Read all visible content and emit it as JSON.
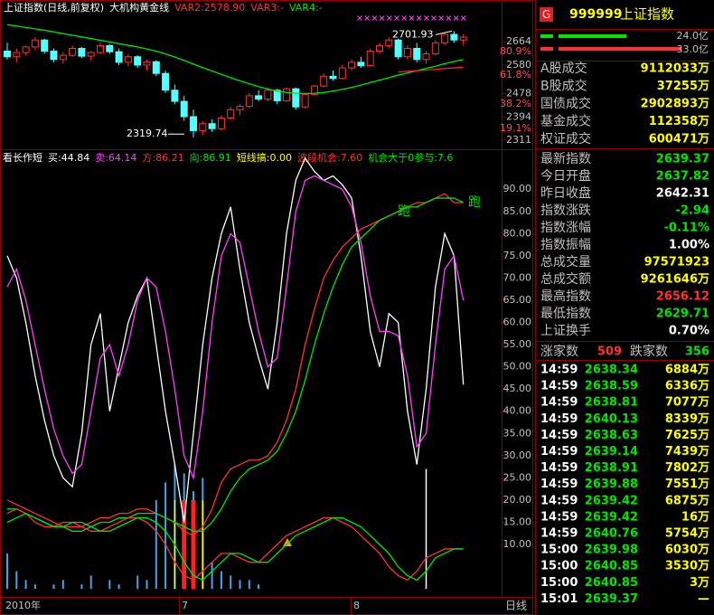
{
  "main_chart": {
    "title": "上证指数(日线,前复权)",
    "indicator": "大机构黄金线",
    "vars": [
      {
        "text": "VAR2:2578.90",
        "color": "#ff3232"
      },
      {
        "text": "VAR3:-",
        "color": "#ff3232"
      },
      {
        "text": "VAR4:-",
        "color": "#00e600"
      }
    ],
    "ylim": [
      2288,
      2768
    ],
    "yticks": [
      2664,
      {
        "value": 2628,
        "label": "80.9%"
      },
      2580,
      {
        "value": 2544,
        "label": "61.8%"
      },
      2478,
      {
        "value": 2440,
        "label": "38.2%"
      },
      2394,
      {
        "value": 2353,
        "label": "19.1%"
      },
      2311
    ],
    "open": [
      2630,
      2610,
      2625,
      2645,
      2670,
      2630,
      2600,
      2615,
      2640,
      2612,
      2625,
      2650,
      2628,
      2590,
      2610,
      2580,
      2592,
      2550,
      2490,
      2450,
      2395,
      2345,
      2370,
      2352,
      2390,
      2420,
      2432,
      2470,
      2458,
      2490,
      2452,
      2495,
      2430,
      2475,
      2505,
      2540,
      2532,
      2570,
      2590,
      2578,
      2630,
      2650,
      2670,
      2610,
      2640,
      2600,
      2620,
      2660,
      2690,
      2670
    ],
    "high": [
      2660,
      2640,
      2650,
      2680,
      2675,
      2640,
      2625,
      2650,
      2645,
      2630,
      2660,
      2655,
      2640,
      2620,
      2615,
      2600,
      2598,
      2560,
      2510,
      2470,
      2420,
      2380,
      2385,
      2400,
      2430,
      2440,
      2480,
      2490,
      2500,
      2495,
      2500,
      2500,
      2480,
      2510,
      2550,
      2560,
      2580,
      2600,
      2610,
      2640,
      2660,
      2680,
      2675,
      2650,
      2660,
      2630,
      2670,
      2695,
      2701.93,
      2690
    ],
    "low": [
      2600,
      2590,
      2615,
      2635,
      2620,
      2590,
      2585,
      2610,
      2605,
      2595,
      2620,
      2620,
      2580,
      2575,
      2570,
      2560,
      2540,
      2480,
      2440,
      2380,
      2319.74,
      2330,
      2340,
      2345,
      2385,
      2400,
      2425,
      2450,
      2450,
      2440,
      2448,
      2420,
      2425,
      2470,
      2500,
      2525,
      2528,
      2560,
      2570,
      2575,
      2620,
      2640,
      2600,
      2600,
      2590,
      2585,
      2615,
      2650,
      2660,
      2650
    ],
    "close": [
      2610,
      2625,
      2645,
      2670,
      2630,
      2600,
      2615,
      2640,
      2612,
      2625,
      2650,
      2628,
      2590,
      2610,
      2580,
      2592,
      2550,
      2490,
      2450,
      2395,
      2345,
      2370,
      2352,
      2390,
      2420,
      2432,
      2470,
      2458,
      2490,
      2452,
      2495,
      2430,
      2475,
      2505,
      2540,
      2532,
      2570,
      2590,
      2578,
      2630,
      2650,
      2670,
      2610,
      2640,
      2600,
      2620,
      2660,
      2690,
      2670,
      2680
    ],
    "ma_green": [
      2725,
      2720,
      2715,
      2710,
      2705,
      2699,
      2693,
      2687,
      2681,
      2675,
      2669,
      2663,
      2657,
      2651,
      2645,
      2638,
      2630,
      2620,
      2609,
      2597,
      2584,
      2571,
      2559,
      2547,
      2535,
      2524,
      2513,
      2503,
      2494,
      2487,
      2482,
      2479,
      2478,
      2479,
      2482,
      2487,
      2493,
      2500,
      2508,
      2517,
      2526,
      2535,
      2544,
      2552,
      2560,
      2568,
      2576,
      2585,
      2593,
      2600
    ],
    "ma_red": [
      null,
      null,
      null,
      null,
      null,
      null,
      null,
      null,
      null,
      null,
      null,
      null,
      null,
      null,
      null,
      null,
      null,
      null,
      null,
      null,
      null,
      null,
      null,
      null,
      null,
      null,
      null,
      null,
      null,
      null,
      null,
      null,
      null,
      null,
      null,
      null,
      null,
      null,
      null,
      null,
      null,
      null,
      2555,
      2558,
      2560,
      2562,
      2565,
      2568,
      2570,
      2573
    ],
    "high_label": 2701.93,
    "low_label": 2319.74
  },
  "indicator_chart": {
    "header": [
      {
        "text": "看长作短",
        "color": "#ffffff"
      },
      {
        "text": "买:44.84",
        "color": "#ffffff"
      },
      {
        "text": "卖:64.14",
        "color": "#ff40ff"
      },
      {
        "text": "方:86.21",
        "color": "#ff3232"
      },
      {
        "text": "向:86.91",
        "color": "#00e600"
      },
      {
        "text": "短线搞:0.00",
        "color": "#ffff00"
      },
      {
        "text": "波段机会:7.60",
        "color": "#ff3232"
      },
      {
        "text": "机会大于0参与:7.6",
        "color": "#00e600"
      }
    ],
    "ylim": [
      -1.4,
      98.4
    ],
    "yticks": [
      {
        "value": 90,
        "label": "90.00"
      },
      {
        "value": 85,
        "label": "85.00"
      },
      {
        "value": 80,
        "label": "80.00"
      },
      {
        "value": 75,
        "label": "75.00"
      },
      {
        "value": 70,
        "label": "70.00"
      },
      {
        "value": 65,
        "label": "65.00"
      },
      {
        "value": 60,
        "label": "60.00"
      },
      {
        "value": 55,
        "label": "55.00"
      },
      {
        "value": 50,
        "label": "50.00"
      },
      {
        "value": 45,
        "label": "45.00"
      },
      {
        "value": 40,
        "label": "40.00"
      },
      {
        "value": 35,
        "label": "35.00"
      },
      {
        "value": 30,
        "label": "30.00"
      },
      {
        "value": 25,
        "label": "25.00"
      },
      {
        "value": 20,
        "label": "20.00"
      },
      {
        "value": 15,
        "label": "15.00"
      },
      {
        "value": 10,
        "label": "10.00"
      }
    ],
    "lines": [
      {
        "color": "#ffffff",
        "values": [
          75,
          70,
          60,
          48,
          38,
          30,
          25,
          23,
          35,
          55,
          62,
          40,
          50,
          60,
          66,
          70,
          55,
          40,
          28,
          15,
          35,
          55,
          70,
          80,
          86,
          72,
          60,
          52,
          45,
          60,
          80,
          92,
          97,
          94,
          92,
          93,
          91,
          88,
          75,
          58,
          50,
          62,
          60,
          40,
          28,
          45,
          68,
          80,
          75,
          46
        ]
      },
      {
        "color": "#ff40ff",
        "values": [
          68,
          72,
          65,
          55,
          45,
          36,
          30,
          26,
          28,
          40,
          52,
          55,
          48,
          55,
          65,
          70,
          68,
          58,
          45,
          30,
          25,
          40,
          60,
          75,
          80,
          78,
          68,
          58,
          50,
          52,
          68,
          85,
          92,
          93,
          92,
          91,
          90,
          86,
          78,
          66,
          58,
          58,
          57,
          48,
          32,
          35,
          55,
          72,
          75,
          65
        ]
      },
      {
        "color": "#ff3232",
        "values": [
          20,
          19,
          18,
          17,
          16,
          15,
          14,
          14,
          14,
          15,
          16,
          16,
          17,
          17,
          18,
          18,
          17,
          16,
          15,
          13,
          12,
          14,
          18,
          24,
          27,
          28,
          29,
          29,
          30,
          33,
          38,
          45,
          55,
          63,
          70,
          74,
          77,
          79,
          81,
          82,
          83,
          84,
          85,
          86,
          87,
          87,
          88,
          89,
          87,
          87
        ]
      },
      {
        "color": "#00e600",
        "values": [
          18,
          18,
          17,
          16,
          15,
          14,
          14,
          13,
          13,
          14,
          15,
          15,
          16,
          16,
          17,
          17,
          17,
          16,
          15,
          14,
          13,
          13,
          15,
          18,
          22,
          25,
          27,
          28,
          29,
          31,
          35,
          40,
          47,
          55,
          62,
          68,
          73,
          77,
          79,
          81,
          83,
          84,
          85,
          86,
          86,
          87,
          88,
          88,
          88,
          87
        ]
      },
      {
        "color": "#ff3232",
        "values": [
          17,
          18,
          17,
          15,
          14,
          14,
          15,
          15,
          14,
          13,
          13,
          14,
          15,
          16,
          16,
          15,
          13,
          10,
          6,
          3,
          2,
          4,
          6,
          8,
          8,
          7,
          6,
          6,
          8,
          10,
          12,
          13,
          14,
          15,
          16,
          16,
          15,
          14,
          12,
          10,
          8,
          5,
          3,
          2,
          4,
          7,
          8,
          9,
          9,
          9
        ]
      },
      {
        "color": "#00e600",
        "values": [
          15,
          16,
          17,
          16,
          15,
          14,
          14,
          15,
          15,
          14,
          13,
          13,
          14,
          15,
          16,
          16,
          15,
          13,
          10,
          6,
          3,
          2,
          4,
          6,
          8,
          8,
          7,
          6,
          6,
          8,
          10,
          12,
          13,
          14,
          15,
          16,
          16,
          15,
          14,
          12,
          10,
          8,
          5,
          3,
          2,
          4,
          7,
          8,
          9,
          9
        ]
      }
    ],
    "bars": [
      {
        "color": "#4aa3df",
        "values": [
          8,
          4,
          2,
          1,
          null,
          1,
          2,
          null,
          1,
          3,
          null,
          2,
          1,
          null,
          3,
          2,
          20,
          24,
          28,
          26,
          22,
          25,
          6,
          4,
          3,
          2,
          2,
          1,
          null,
          null,
          null,
          null,
          null,
          null,
          null,
          null,
          null,
          null,
          null,
          null,
          null,
          null,
          null,
          null,
          null,
          null,
          null,
          null,
          null,
          null
        ]
      },
      {
        "color": "#ffff00",
        "values": [
          null,
          null,
          null,
          null,
          null,
          null,
          null,
          null,
          null,
          null,
          null,
          null,
          null,
          null,
          null,
          null,
          null,
          null,
          20,
          null,
          null,
          20,
          null,
          null,
          null,
          null,
          null,
          null,
          null,
          null,
          null,
          null,
          null,
          null,
          null,
          null,
          null,
          null,
          null,
          null,
          null,
          null,
          null,
          null,
          null,
          null,
          null,
          null,
          null,
          null
        ]
      },
      {
        "color": "#ff2020",
        "values": [
          null,
          null,
          null,
          null,
          null,
          null,
          null,
          null,
          null,
          null,
          null,
          null,
          null,
          null,
          null,
          null,
          null,
          null,
          null,
          20,
          20,
          null,
          null,
          null,
          null,
          null,
          null,
          null,
          null,
          null,
          null,
          null,
          null,
          null,
          null,
          null,
          null,
          null,
          null,
          null,
          null,
          null,
          null,
          null,
          null,
          null,
          null,
          null,
          null,
          null
        ]
      },
      {
        "color": "#ffffff",
        "values": [
          null,
          null,
          null,
          null,
          null,
          null,
          null,
          null,
          null,
          null,
          null,
          null,
          null,
          null,
          null,
          null,
          null,
          null,
          null,
          null,
          null,
          null,
          null,
          null,
          null,
          null,
          null,
          null,
          null,
          null,
          null,
          null,
          null,
          null,
          null,
          null,
          null,
          null,
          null,
          null,
          null,
          null,
          null,
          null,
          null,
          27,
          null,
          null,
          null,
          null
        ]
      }
    ],
    "signals": [
      "跑",
      "跑"
    ]
  },
  "x_axis": {
    "labels": [
      "2010年",
      "7",
      "8"
    ],
    "period": "日线"
  },
  "quote_panel": {
    "badge": "G",
    "code": "999999",
    "name": "上证指数",
    "strength": [
      "24.0亿",
      "33.0亿"
    ],
    "turnover": [
      {
        "label": "A股成交",
        "value": "9112033万"
      },
      {
        "label": "B股成交",
        "value": "37255万"
      },
      {
        "label": "国债成交",
        "value": "2902893万"
      },
      {
        "label": "基金成交",
        "value": "112358万"
      },
      {
        "label": "权证成交",
        "value": "600471万"
      }
    ],
    "stats": [
      {
        "label": "最新指数",
        "value": "2639.37",
        "color": "#00e600"
      },
      {
        "label": "今日开盘",
        "value": "2637.82",
        "color": "#00e600"
      },
      {
        "label": "昨日收盘",
        "value": "2642.31",
        "color": "#ffffff"
      },
      {
        "label": "指数涨跌",
        "value": "-2.94",
        "color": "#00e600"
      },
      {
        "label": "指数涨幅",
        "value": "-0.11%",
        "color": "#00e600"
      },
      {
        "label": "指数振幅",
        "value": "1.00%",
        "color": "#ffffff"
      },
      {
        "label": "总成交量",
        "value": "97571923",
        "color": "#ffff00"
      },
      {
        "label": "总成交额",
        "value": "9261646万",
        "color": "#ffff00"
      },
      {
        "label": "最高指数",
        "value": "2656.12",
        "color": "#ff3232"
      },
      {
        "label": "最低指数",
        "value": "2629.71",
        "color": "#00e600"
      },
      {
        "label": "上证换手",
        "value": "0.70%",
        "color": "#ffffff"
      }
    ],
    "breadth": {
      "up_label": "涨家数",
      "up": "509",
      "down_label": "跌家数",
      "down": "356"
    },
    "ticks": [
      [
        "14:59",
        "2638.34",
        "6884万"
      ],
      [
        "14:59",
        "2638.59",
        "6336万"
      ],
      [
        "14:59",
        "2638.81",
        "7077万"
      ],
      [
        "14:59",
        "2640.13",
        "8339万"
      ],
      [
        "14:59",
        "2638.63",
        "7625万"
      ],
      [
        "14:59",
        "2639.14",
        "7439万"
      ],
      [
        "14:59",
        "2638.91",
        "7802万"
      ],
      [
        "14:59",
        "2639.88",
        "7551万"
      ],
      [
        "14:59",
        "2639.42",
        "6875万"
      ],
      [
        "14:59",
        "2639.42",
        "16万"
      ],
      [
        "14:59",
        "2640.76",
        "5754万"
      ],
      [
        "15:00",
        "2639.98",
        "6030万"
      ],
      [
        "15:00",
        "2640.85",
        "3530万"
      ],
      [
        "15:00",
        "2640.85",
        "3万"
      ],
      [
        "15:01",
        "2639.37",
        "—"
      ]
    ]
  }
}
